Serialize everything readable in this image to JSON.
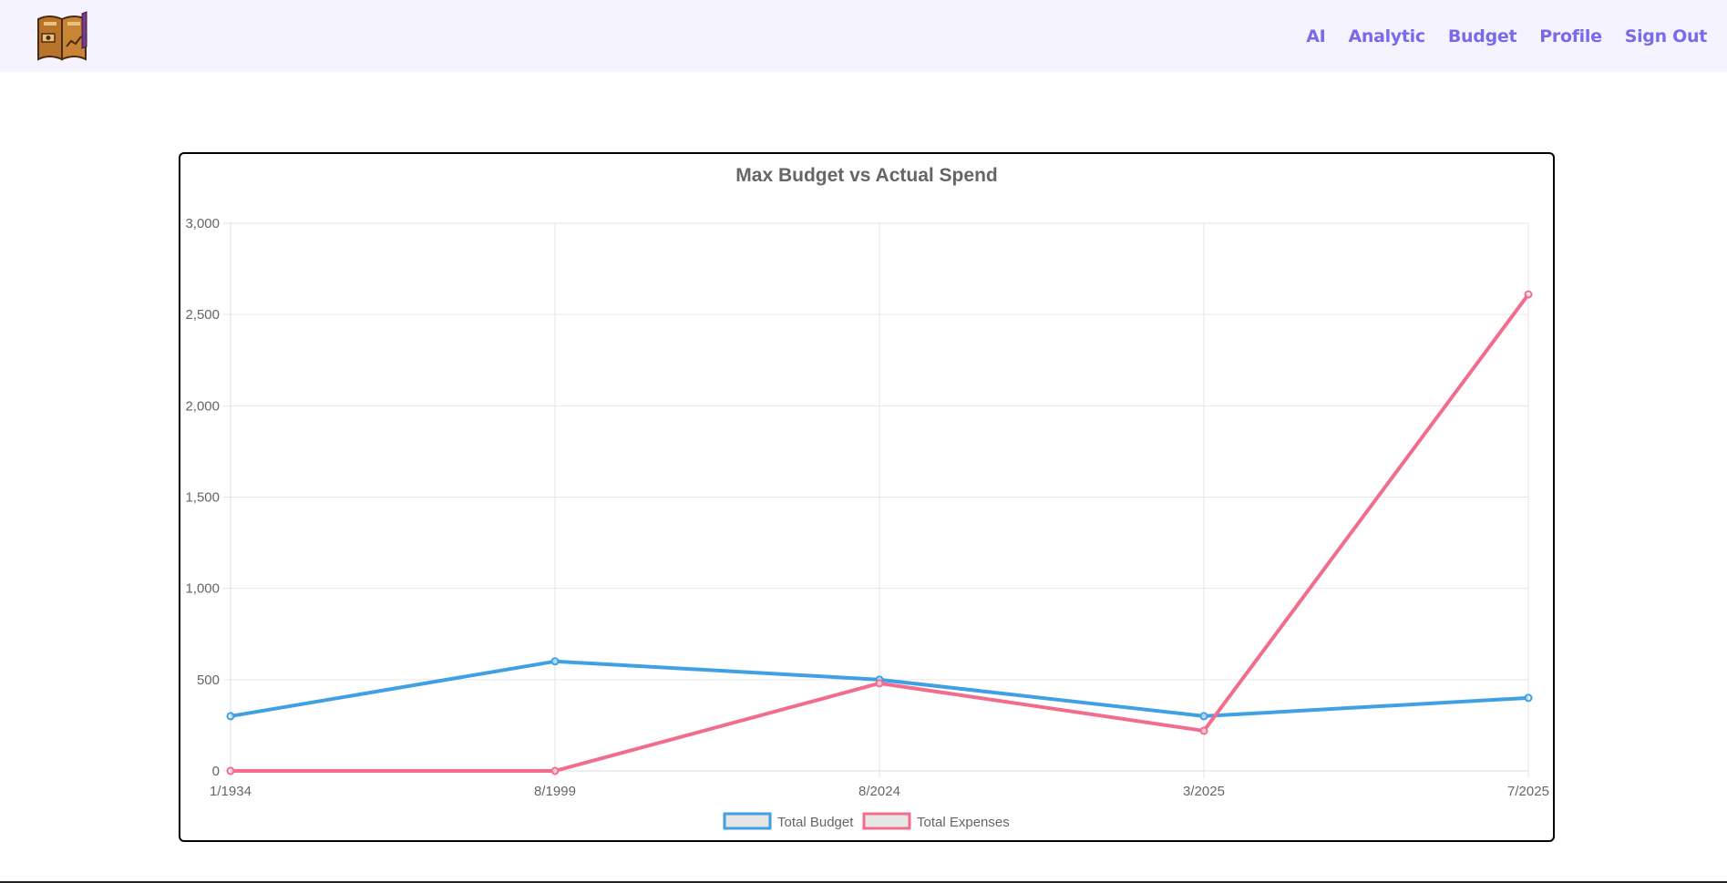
{
  "nav": {
    "links": [
      "AI",
      "Analytic",
      "Budget",
      "Profile",
      "Sign Out"
    ],
    "link_color": "#7a6ae8",
    "background": "#f5f3fe"
  },
  "logo": {
    "icon": "budget-book-icon"
  },
  "chart_data": {
    "type": "line",
    "title": "Max Budget vs Actual Spend",
    "categories": [
      "1/1934",
      "8/1999",
      "8/2024",
      "3/2025",
      "7/2025"
    ],
    "series": [
      {
        "name": "Total Budget",
        "values": [
          300,
          600,
          500,
          300,
          400
        ],
        "color": "#3fa0e3"
      },
      {
        "name": "Total Expenses",
        "values": [
          0,
          0,
          480,
          220,
          2610
        ],
        "color": "#f26d8d"
      }
    ],
    "ylim": [
      0,
      3000
    ],
    "yticks": [
      0,
      500,
      1000,
      1500,
      2000,
      2500,
      3000
    ],
    "ytick_labels": [
      "0",
      "500",
      "1,000",
      "1,500",
      "2,000",
      "2,500",
      "3,000"
    ],
    "grid": true,
    "legend": "bottom"
  }
}
